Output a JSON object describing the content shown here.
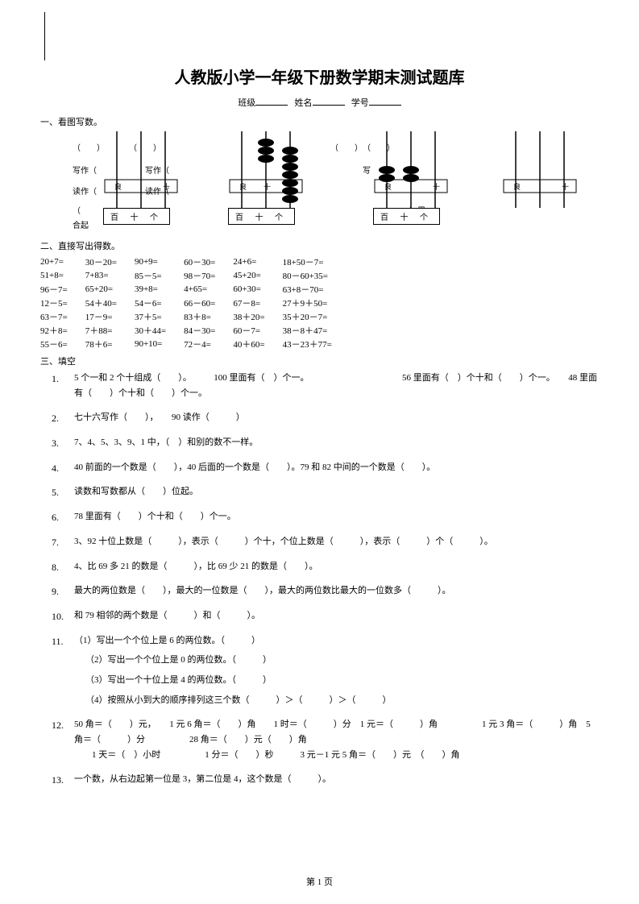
{
  "title": "人教版小学一年级下册数学期末测试题库",
  "header": {
    "class_label": "班级",
    "name_label": "姓名",
    "id_label": "学号"
  },
  "section1": {
    "title": "一、看图写数。",
    "write": "写作（",
    "read": "读作（",
    "sum": "合起",
    "box_label": "百 十 个",
    "li": "）里"
  },
  "section2": {
    "title": "二、直接写出得数。",
    "rows": [
      [
        "20+7=",
        "30－20=",
        "90+9=",
        "60－30=",
        "24+6=",
        "18+50－7="
      ],
      [
        "51+8=",
        "7+83=",
        "85－5=",
        "98－70=",
        "45+20=",
        "80－60+35="
      ],
      [
        "96－7=",
        "65+20=",
        "39+8=",
        "4+65=",
        "60+30=",
        "63+8－70="
      ],
      [
        "12－5=",
        "54＋40=",
        "54－6=",
        "66－60=",
        "67－8=",
        "27＋9＋50="
      ],
      [
        "63－7=",
        "17－9=",
        "37＋5=",
        "83＋8=",
        "38＋20=",
        "35＋20－7="
      ],
      [
        "92＋8=",
        "7＋88=",
        "30＋44=",
        "84－30=",
        "60－7=",
        "38－8＋47="
      ],
      [
        "55－6=",
        "78＋6=",
        "90+10=",
        "72－4=",
        "40＋60=",
        "43－23＋77="
      ]
    ]
  },
  "section3": {
    "title": "三、填空",
    "items": [
      {
        "n": "1.",
        "t": "5 个一和 2 个十组成（　　）。　　　100 里面有（　）个一。　　　　　　　　　　　56 里面有（　）个十和（　　）个一。　　48 里面有（　　）个十和（　　）个一。"
      },
      {
        "n": "2.",
        "t": "七十六写作（　　），　　90 读作（　　　）"
      },
      {
        "n": "3.",
        "t": "7、4、5、3、9、1 中，（　）和别的数不一样。"
      },
      {
        "n": "4.",
        "t": "40 前面的一个数是（　　），40 后面的一个数是（　　）。79 和 82 中间的一个数是（　　）。"
      },
      {
        "n": "5.",
        "t": "读数和写数都从（　　）位起。"
      },
      {
        "n": "6.",
        "t": "78 里面有（　　）个十和（　　）个一。"
      },
      {
        "n": "7.",
        "t": "3、92 十位上数是（　　　），表示（　　　）个十，个位上数是（　　　），表示（　　　）个（　　　）。"
      },
      {
        "n": "8.",
        "t": "4、比 69 多 21 的数是（　　　），比 69 少 21 的数是（　　）。"
      },
      {
        "n": "9.",
        "t": "最大的两位数是（　　），最大的一位数是（　　），最大的两位数比最大的一位数多（　　　）。"
      },
      {
        "n": "10.",
        "t": "和 79 相邻的两个数是（　　　）和（　　　）。"
      },
      {
        "n": "11.",
        "t": "（1）写出一个个位上是 6 的两位数。（　　　）",
        "subs": [
          "（2）写出一个个位上是 0 的两位数。（　　　）",
          "（3）写出一个十位上是 4 的两位数。（　　　）",
          "（4）按照从小到大的顺序排列这三个数（　　　）＞（　　　）＞（　　　）"
        ]
      },
      {
        "n": "12.",
        "t": "50 角＝（　　）元，　　1 元 6 角＝（　　）角　　1 时＝（　　　）分　1 元＝（　　　）角　　　　　1 元 3 角＝（　　　）角　5 角＝（　　　）分　　　　　28 角＝（　　）元（　　）角\n　　1 天＝（　）小时　　　　　1 分＝（　　）秒　　　3 元－1 元 5 角＝（　　）元　（　　）角"
      },
      {
        "n": "13.",
        "t": "一个数，从右边起第一位是 3，第二位是 4，这个数是（　　　）。"
      }
    ]
  },
  "footer": "第 1 页",
  "colors": {
    "text": "#000000",
    "bg": "#ffffff"
  }
}
